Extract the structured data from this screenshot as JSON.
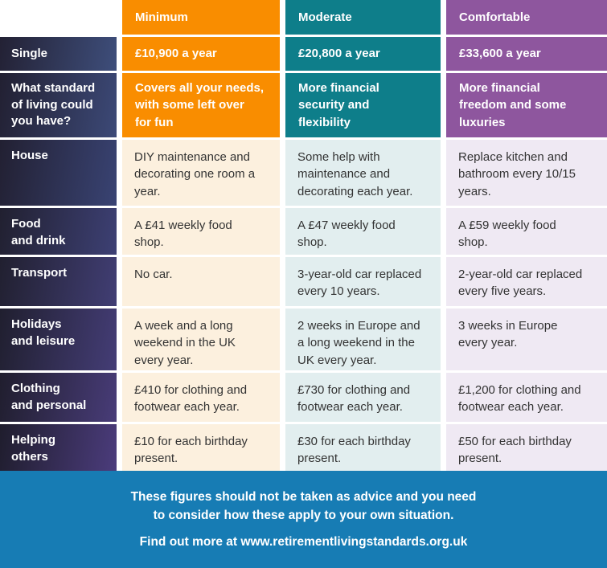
{
  "colors": {
    "orange": "#F98D00",
    "teal": "#0E7E8A",
    "purple": "#8E569E",
    "orange_tint": "#FCF0DE",
    "teal_tint": "#E2EEEF",
    "purple_tint": "#EFE9F3",
    "label_dark": "#222032",
    "label_blue": "#3E4E7B",
    "label_purple": "#4B3C7C",
    "footer_blue": "#177CB4"
  },
  "header": {
    "columns": [
      "Minimum",
      "Moderate",
      "Comfortable"
    ]
  },
  "rows": [
    {
      "label": "Single",
      "cells": [
        "£10,900 a year",
        "£20,800 a year",
        "£33,600 a year"
      ]
    },
    {
      "label": "What standard\nof living could\nyou have?",
      "cells": [
        "Covers all your needs,\nwith some left over\nfor fun",
        "More financial\nsecurity and\nflexibility",
        "More financial\nfreedom and some\nluxuries"
      ]
    },
    {
      "label": "House",
      "cells": [
        "DIY maintenance and\ndecorating one room a\nyear.",
        "Some help with\nmaintenance and\ndecorating each year.",
        "Replace kitchen and\nbathroom every 10/15\nyears."
      ]
    },
    {
      "label": "Food\nand drink",
      "cells": [
        "A £41 weekly food\nshop.",
        "A £47 weekly food\nshop.",
        "A £59 weekly food\nshop."
      ]
    },
    {
      "label": "Transport",
      "cells": [
        "No car.",
        "3-year-old car replaced\nevery 10 years.",
        "2-year-old car replaced\nevery five years."
      ]
    },
    {
      "label": "Holidays\nand leisure",
      "cells": [
        "A week and a long\nweekend in the UK\nevery year.",
        "2 weeks in Europe and\na long weekend in the\nUK every year.",
        "3 weeks in Europe\nevery year."
      ]
    },
    {
      "label": "Clothing\nand personal",
      "cells": [
        "£410 for clothing and\nfootwear each year.",
        "£730 for clothing and\nfootwear each year.",
        "£1,200 for clothing and\nfootwear each year."
      ]
    },
    {
      "label": "Helping\nothers",
      "cells": [
        "£10 for each birthday\npresent.",
        "£30 for each birthday\npresent.",
        "£50 for each birthday\npresent."
      ]
    }
  ],
  "footer": {
    "disclaimer": "These figures should not be taken as advice and you need\nto consider how these apply to your own situation.",
    "find_out_more": "Find out more at www.retirementlivingstandards.org.uk"
  }
}
